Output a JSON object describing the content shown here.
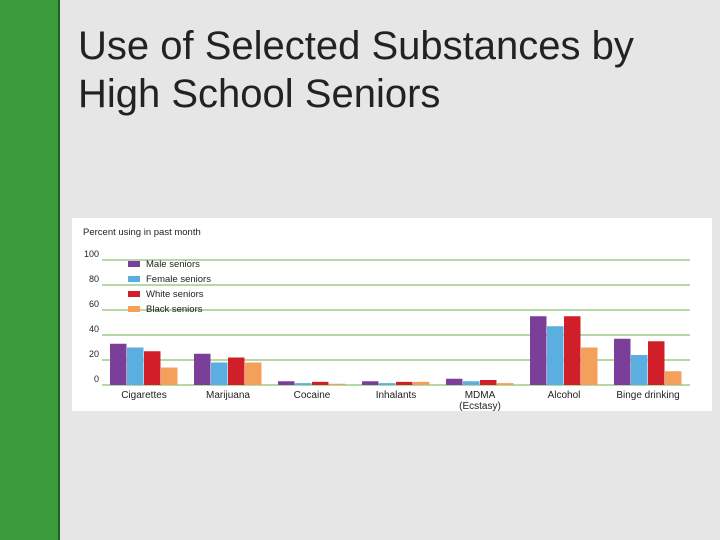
{
  "slide": {
    "title_line1": "Use of Selected Substances by",
    "title_line2": "High School Seniors"
  },
  "colors": {
    "sidebar": "#3b9a3b",
    "grid": "#6ab04c"
  },
  "chart_data": {
    "type": "bar",
    "ylabel": "Percent using in past month",
    "ylim": [
      0,
      100
    ],
    "yticks": [
      "100",
      "80",
      "60",
      "40",
      "20",
      "0"
    ],
    "categories": [
      {
        "line1": "Cigarettes",
        "line2": ""
      },
      {
        "line1": "Marijuana",
        "line2": ""
      },
      {
        "line1": "Cocaine",
        "line2": ""
      },
      {
        "line1": "Inhalants",
        "line2": ""
      },
      {
        "line1": "MDMA",
        "line2": "(Ecstasy)"
      },
      {
        "line1": "Alcohol",
        "line2": ""
      },
      {
        "line1": "Binge drinking",
        "line2": ""
      }
    ],
    "series": [
      {
        "name": "Male seniors",
        "color": "#7b3f9a",
        "values": [
          33,
          25,
          3,
          3,
          5,
          55,
          37
        ]
      },
      {
        "name": "Female seniors",
        "color": "#5aaee0",
        "values": [
          30,
          18,
          1.5,
          1.5,
          3,
          47,
          24
        ]
      },
      {
        "name": "White seniors",
        "color": "#d11f2a",
        "values": [
          27,
          22,
          2.5,
          2.5,
          4,
          55,
          35
        ]
      },
      {
        "name": "Black seniors",
        "color": "#f4a05a",
        "values": [
          14,
          18,
          1,
          2.5,
          1.5,
          30,
          11
        ]
      }
    ],
    "grid": true,
    "legend_position": "top-left"
  }
}
